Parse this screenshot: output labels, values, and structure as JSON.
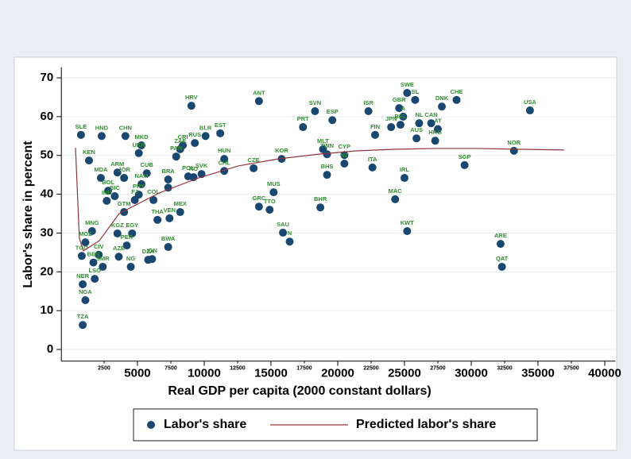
{
  "chart_data": {
    "type": "scatter",
    "x_label": "Real GDP per capita (2000 constant dollars)",
    "y_label": "Labor's share in percent",
    "xlim": [
      -700,
      40800
    ],
    "ylim": [
      -3,
      72.7
    ],
    "xticks": [
      5000,
      10000,
      15000,
      20000,
      25000,
      30000,
      35000,
      40000
    ],
    "xticks_minor": [
      2500,
      7500,
      12500,
      17500,
      22500,
      27500,
      32500,
      37500
    ],
    "yticks": [
      0,
      10,
      20,
      30,
      40,
      50,
      60,
      70
    ],
    "grid": true,
    "series": [
      {
        "name": "Labor's share",
        "color": "#1a476f",
        "x": [
          770,
          2320,
          4100,
          5300,
          5100,
          9040,
          14100,
          18300,
          19600,
          17400,
          22300,
          25200,
          25800,
          24600,
          28900,
          27800,
          34400,
          22800,
          24000,
          24900,
          24700,
          26100,
          27000,
          27500,
          25900,
          27300,
          33200,
          29500,
          11200,
          10100,
          9300,
          8400,
          8200,
          7900,
          11500,
          11500,
          13700,
          15800,
          18900,
          19200,
          20500,
          20500,
          22600,
          25000,
          19200,
          15200,
          14100,
          14900,
          18700,
          24300,
          25200,
          15900,
          16400,
          32200,
          32300,
          9800,
          8800,
          9200,
          1370,
          2260,
          3500,
          4000,
          5700,
          5300,
          7300,
          7300,
          2800,
          2700,
          5100,
          4800,
          3300,
          4000,
          6500,
          7400,
          8200,
          6200,
          1600,
          3500,
          4600,
          1100,
          4200,
          7300,
          3600,
          4500,
          6100,
          5800,
          2100,
          830,
          1700,
          2400,
          1800,
          900,
          1100,
          900
        ],
        "values": [
          55.3,
          55,
          55,
          52.6,
          50.6,
          62.8,
          64,
          61.4,
          59.1,
          57.3,
          61.4,
          66.1,
          64.3,
          62.2,
          64.3,
          62.6,
          61.6,
          55.3,
          57.3,
          60,
          57.9,
          58.3,
          58.3,
          56.8,
          54.4,
          53.8,
          51.2,
          47.5,
          55.7,
          55,
          53.2,
          52.6,
          51.6,
          49.7,
          49.1,
          46,
          46.7,
          49.1,
          51.6,
          50.3,
          50.1,
          47.9,
          46.9,
          44.2,
          45,
          40.5,
          36.8,
          36,
          36.6,
          38.7,
          30.5,
          30.1,
          27.8,
          27.2,
          21.3,
          45.2,
          44.6,
          44.4,
          48.7,
          44.2,
          45.6,
          44.2,
          45.4,
          42.6,
          41.7,
          43.8,
          40.9,
          38.3,
          39.9,
          38.5,
          39.5,
          35.4,
          33.4,
          33.8,
          35.4,
          38.5,
          30.5,
          29.9,
          29.9,
          27.6,
          26.8,
          26.4,
          23.9,
          21.3,
          23.3,
          23.1,
          24.4,
          24.1,
          22.4,
          21.3,
          18.2,
          16.8,
          12.7,
          6.3
        ],
        "point_labels": [
          "SLE",
          "HND",
          "CHN",
          "MKD",
          "UKR",
          "HRV",
          "ANT",
          "SVN",
          "ESP",
          "PRT",
          "ISR",
          "SWE",
          "SL",
          "GBR",
          "CHE",
          "DNK",
          "USA",
          "FIN",
          "JPN",
          "A",
          "BEL",
          "NL",
          "CAN",
          "AT",
          "AUS",
          "HKG",
          "NOR",
          "SGP",
          "EST",
          "BLR",
          "RUS",
          "CRI",
          "ZAF",
          "PAN",
          "HUN",
          "CHL",
          "CZE",
          "KOR",
          "MLT",
          "TWN",
          "CYP",
          "NZ",
          "ITA",
          "IRL",
          "BHS",
          "MUS",
          "GRC",
          "TTO",
          "BHR",
          "MAC",
          "KWT",
          "SAU",
          "N",
          "ARE",
          "QAT",
          "SVK",
          "POL",
          "RO",
          "KEN",
          "MDA",
          "ARM",
          "JOR",
          "CUB",
          "NAM",
          "TU",
          "BRA",
          "BOL",
          "IND",
          "PRY",
          "FJ",
          "BIC",
          "GTM",
          "THA",
          "VEN",
          "MEX",
          "COL",
          "MNG",
          "KGZ",
          "EGY",
          "MOZ",
          "PER",
          "BWA",
          "AZE",
          "NG",
          "IDN",
          "DZA",
          "CIV",
          "TGO",
          "BEN",
          "SMR",
          "LSO",
          "NER",
          "NGA",
          "TZA"
        ]
      },
      {
        "name": "Predicted labor's share",
        "color": "#90353b",
        "style": "line",
        "x": [
          360,
          650,
          950,
          2140,
          3630,
          6600,
          9580,
          12560,
          15530,
          18500,
          21480,
          24450,
          27430,
          30400,
          33380,
          36950
        ],
        "values": [
          52,
          28.6,
          25.4,
          28,
          35,
          40.3,
          44.2,
          47.3,
          49.1,
          50.3,
          51.2,
          51.6,
          51.8,
          51.8,
          51.6,
          51.4
        ]
      }
    ]
  }
}
